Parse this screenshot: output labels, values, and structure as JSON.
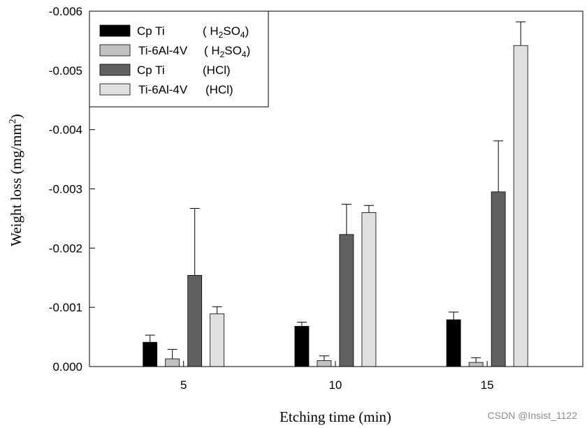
{
  "chart_data": {
    "type": "bar",
    "title": "",
    "xlabel": "Etching time  (min)",
    "ylabel": {
      "main": "Weight loss (mg/mm",
      "sup": "2",
      "close": ")"
    },
    "categories": [
      "5",
      "10",
      "15"
    ],
    "ylim": [
      0.0,
      -0.006
    ],
    "yticks": [
      {
        "value": 0.0,
        "label": "0.000"
      },
      {
        "value": -0.001,
        "label": "-0.001"
      },
      {
        "value": -0.002,
        "label": "-0.002"
      },
      {
        "value": -0.003,
        "label": "-0.003"
      },
      {
        "value": -0.004,
        "label": "-0.004"
      },
      {
        "value": -0.005,
        "label": "-0.005"
      },
      {
        "value": -0.006,
        "label": "-0.006"
      }
    ],
    "legend_position": "top-left",
    "series": [
      {
        "name": "Cp Ti",
        "medium": {
          "pre": "( H",
          "sub1": "2",
          "mid": "SO",
          "sub2": "4",
          "post": ")"
        },
        "color": "#000000",
        "values": [
          -0.00041,
          -0.00068,
          -0.00079
        ],
        "errors": [
          0.00012,
          7e-05,
          0.00013
        ]
      },
      {
        "name": "Ti-6Al-4V",
        "medium": {
          "pre": "( H",
          "sub1": "2",
          "mid": "SO",
          "sub2": "4",
          "post": ")"
        },
        "color": "#c0c0c0",
        "values": [
          -0.00013,
          -0.0001,
          -7e-05
        ],
        "errors": [
          0.00016,
          8e-05,
          8e-05
        ]
      },
      {
        "name": "Cp Ti",
        "medium": {
          "pre": "(HCl)"
        },
        "color": "#606060",
        "values": [
          -0.00154,
          -0.00223,
          -0.00295
        ],
        "errors": [
          0.00113,
          0.00051,
          0.00086
        ]
      },
      {
        "name": "Ti-6Al-4V",
        "medium": {
          "pre": "(HCl)"
        },
        "color": "#e0e0e0",
        "values": [
          -0.00089,
          -0.0026,
          -0.00542
        ],
        "errors": [
          0.00012,
          0.00012,
          0.0004
        ]
      }
    ]
  },
  "watermark": "CSDN @Insist_1122"
}
